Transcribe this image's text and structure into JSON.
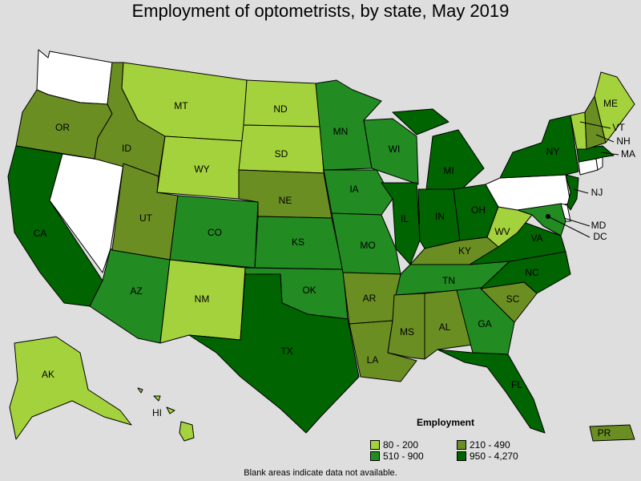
{
  "title": "Employment of optometrists, by state, May 2019",
  "footnote": "Blank areas indicate data not available.",
  "legend": {
    "title": "Employment",
    "items": [
      {
        "label": "80 - 200",
        "color": "#a4d23c"
      },
      {
        "label": "510 - 900",
        "color": "#228b22"
      },
      {
        "label": "210 - 490",
        "color": "#6b8e23"
      },
      {
        "label": "950 - 4,270",
        "color": "#006400"
      }
    ]
  },
  "colors": {
    "c1": "#a4d23c",
    "c2": "#6b8e23",
    "c3": "#228b22",
    "c4": "#006400",
    "blank": "#ffffff"
  },
  "states": {
    "WA": {
      "label": "",
      "class": "blank"
    },
    "OR": {
      "label": "OR",
      "class": "c2"
    },
    "CA": {
      "label": "CA",
      "class": "c4"
    },
    "NV": {
      "label": "",
      "class": "blank"
    },
    "ID": {
      "label": "ID",
      "class": "c2"
    },
    "MT": {
      "label": "MT",
      "class": "c1"
    },
    "WY": {
      "label": "WY",
      "class": "c1"
    },
    "UT": {
      "label": "UT",
      "class": "c2"
    },
    "AZ": {
      "label": "AZ",
      "class": "c3"
    },
    "CO": {
      "label": "CO",
      "class": "c3"
    },
    "NM": {
      "label": "NM",
      "class": "c1"
    },
    "ND": {
      "label": "ND",
      "class": "c1"
    },
    "SD": {
      "label": "SD",
      "class": "c1"
    },
    "NE": {
      "label": "NE",
      "class": "c2"
    },
    "KS": {
      "label": "KS",
      "class": "c3"
    },
    "OK": {
      "label": "OK",
      "class": "c3"
    },
    "TX": {
      "label": "TX",
      "class": "c4"
    },
    "MN": {
      "label": "MN",
      "class": "c3"
    },
    "IA": {
      "label": "IA",
      "class": "c3"
    },
    "MO": {
      "label": "MO",
      "class": "c3"
    },
    "AR": {
      "label": "AR",
      "class": "c2"
    },
    "LA": {
      "label": "LA",
      "class": "c2"
    },
    "WI": {
      "label": "WI",
      "class": "c3"
    },
    "IL": {
      "label": "IL",
      "class": "c4"
    },
    "MI": {
      "label": "MI",
      "class": "c4"
    },
    "IN": {
      "label": "IN",
      "class": "c4"
    },
    "OH": {
      "label": "OH",
      "class": "c4"
    },
    "KY": {
      "label": "KY",
      "class": "c2"
    },
    "TN": {
      "label": "TN",
      "class": "c3"
    },
    "MS": {
      "label": "MS",
      "class": "c2"
    },
    "AL": {
      "label": "AL",
      "class": "c2"
    },
    "GA": {
      "label": "GA",
      "class": "c3"
    },
    "FL": {
      "label": "FL",
      "class": "c4"
    },
    "SC": {
      "label": "SC",
      "class": "c2"
    },
    "NC": {
      "label": "NC",
      "class": "c4"
    },
    "VA": {
      "label": "VA",
      "class": "c4"
    },
    "WV": {
      "label": "WV",
      "class": "c1"
    },
    "PA": {
      "label": "",
      "class": "blank"
    },
    "NY": {
      "label": "NY",
      "class": "c4"
    },
    "MD": {
      "label": "MD",
      "class": "c3"
    },
    "DE": {
      "label": "",
      "class": "blank"
    },
    "DC": {
      "label": "DC",
      "class": "c4"
    },
    "NJ": {
      "label": "NJ",
      "class": "c4"
    },
    "CT": {
      "label": "",
      "class": "blank"
    },
    "RI": {
      "label": "",
      "class": "blank"
    },
    "MA": {
      "label": "MA",
      "class": "c4"
    },
    "VT": {
      "label": "VT",
      "class": "c1"
    },
    "NH": {
      "label": "NH",
      "class": "c2"
    },
    "ME": {
      "label": "ME",
      "class": "c1"
    },
    "AK": {
      "label": "AK",
      "class": "c1"
    },
    "HI": {
      "label": "HI",
      "class": "c1"
    },
    "PR": {
      "label": "PR",
      "class": "c2"
    }
  }
}
